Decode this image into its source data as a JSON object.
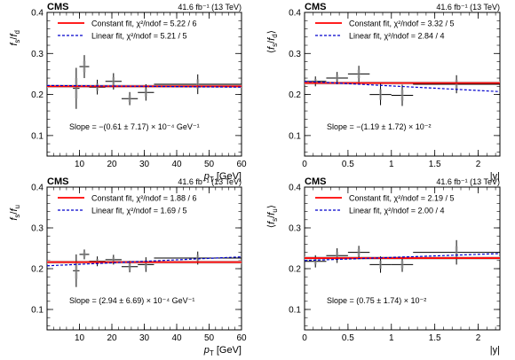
{
  "figure": {
    "panel_labels_experiment": "CMS",
    "lumi_label": "41.6 fb⁻¹ (13 TeV)"
  },
  "chart_data": [
    {
      "type": "scatter",
      "ylabel": "f_s / f_d",
      "xlabel": "p_T [GeV]",
      "xaxis_kind": "pt",
      "xlim": [
        0,
        60
      ],
      "ylim": [
        0.05,
        0.4
      ],
      "xticks": [
        10,
        20,
        30,
        40,
        50,
        60
      ],
      "yticks": [
        0.1,
        0.2,
        0.3,
        0.4
      ],
      "legend": [
        {
          "label": "Constant fit, χ²/ndof = 5.22 / 6",
          "style": "solid",
          "color": "#ff0000"
        },
        {
          "label": "Linear fit, χ²/ndof = 5.21 / 5",
          "style": "dashed",
          "color": "#0000cc"
        }
      ],
      "slope_text": "Slope = −(0.61 ± 7.17) × 10⁻⁴ GeV⁻¹",
      "points": [
        {
          "x": 9,
          "y": 0.215,
          "xerr": 1,
          "yerr": 0.05
        },
        {
          "x": 11.5,
          "y": 0.268,
          "xerr": 1.5,
          "yerr": 0.028
        },
        {
          "x": 15.5,
          "y": 0.218,
          "xerr": 2.5,
          "yerr": 0.018
        },
        {
          "x": 20.5,
          "y": 0.232,
          "xerr": 2.5,
          "yerr": 0.02
        },
        {
          "x": 25.5,
          "y": 0.19,
          "xerr": 2.5,
          "yerr": 0.016
        },
        {
          "x": 30.5,
          "y": 0.205,
          "xerr": 2.5,
          "yerr": 0.02
        },
        {
          "x": 46.5,
          "y": 0.225,
          "xerr": 13.5,
          "yerr": 0.024
        }
      ],
      "constant_fit": 0.22,
      "constant_band": 0.004,
      "linear_fit": [
        [
          0,
          0.222
        ],
        [
          60,
          0.218
        ]
      ]
    },
    {
      "type": "scatter",
      "ylabel": "⟨f_s / f_d⟩",
      "xlabel": "|y|",
      "xaxis_kind": "y",
      "xlim": [
        0,
        2.25
      ],
      "ylim": [
        0.05,
        0.4
      ],
      "xticks": [
        0,
        0.5,
        1,
        1.5,
        2
      ],
      "xtick_labels": [
        "0",
        "0.5",
        "1",
        "1.5",
        "2"
      ],
      "yticks": [
        0.1,
        0.2,
        0.3,
        0.4
      ],
      "legend": [
        {
          "label": "Constant fit, χ²/ndof = 3.32 / 5",
          "style": "solid",
          "color": "#ff0000"
        },
        {
          "label": "Linear fit, χ²/ndof = 2.84 / 4",
          "style": "dashed",
          "color": "#0000cc"
        }
      ],
      "slope_text": "Slope = −(1.19 ± 1.72) × 10⁻²",
      "points": [
        {
          "x": 0.125,
          "y": 0.232,
          "xerr": 0.125,
          "yerr": 0.012
        },
        {
          "x": 0.375,
          "y": 0.24,
          "xerr": 0.125,
          "yerr": 0.015
        },
        {
          "x": 0.625,
          "y": 0.25,
          "xerr": 0.125,
          "yerr": 0.02
        },
        {
          "x": 0.875,
          "y": 0.2,
          "xerr": 0.125,
          "yerr": 0.026
        },
        {
          "x": 1.125,
          "y": 0.198,
          "xerr": 0.125,
          "yerr": 0.026
        },
        {
          "x": 1.75,
          "y": 0.225,
          "xerr": 0.5,
          "yerr": 0.022
        }
      ],
      "constant_fit": 0.228,
      "constant_band": 0.004,
      "linear_fit": [
        [
          0,
          0.232
        ],
        [
          2.25,
          0.207
        ]
      ]
    },
    {
      "type": "scatter",
      "ylabel": "f_s / f_u",
      "xlabel": "p_T [GeV]",
      "xaxis_kind": "pt",
      "xlim": [
        0,
        60
      ],
      "ylim": [
        0.05,
        0.4
      ],
      "xticks": [
        10,
        20,
        30,
        40,
        50,
        60
      ],
      "yticks": [
        0.1,
        0.2,
        0.3,
        0.4
      ],
      "legend": [
        {
          "label": "Constant fit, χ²/ndof = 1.88 / 6",
          "style": "solid",
          "color": "#ff0000"
        },
        {
          "label": "Linear fit, χ²/ndof = 1.69 / 5",
          "style": "dashed",
          "color": "#0000cc"
        }
      ],
      "slope_text": "Slope = (2.94 ± 6.69) × 10⁻⁴ GeV⁻¹",
      "points": [
        {
          "x": 9,
          "y": 0.195,
          "xerr": 1,
          "yerr": 0.04
        },
        {
          "x": 11.5,
          "y": 0.235,
          "xerr": 1.5,
          "yerr": 0.012
        },
        {
          "x": 15.5,
          "y": 0.218,
          "xerr": 2.5,
          "yerr": 0.012
        },
        {
          "x": 20.5,
          "y": 0.222,
          "xerr": 2.5,
          "yerr": 0.012
        },
        {
          "x": 25.5,
          "y": 0.205,
          "xerr": 2.5,
          "yerr": 0.014
        },
        {
          "x": 30.5,
          "y": 0.21,
          "xerr": 2.5,
          "yerr": 0.018
        },
        {
          "x": 46.5,
          "y": 0.226,
          "xerr": 13.5,
          "yerr": 0.016
        }
      ],
      "constant_fit": 0.216,
      "constant_band": 0.004,
      "linear_fit": [
        [
          0,
          0.207
        ],
        [
          60,
          0.229
        ]
      ]
    },
    {
      "type": "scatter",
      "ylabel": "⟨f_s / f_u⟩",
      "xlabel": "|y|",
      "xaxis_kind": "y",
      "xlim": [
        0,
        2.25
      ],
      "ylim": [
        0.05,
        0.4
      ],
      "xticks": [
        0,
        0.5,
        1,
        1.5,
        2
      ],
      "xtick_labels": [
        "0",
        "0.5",
        "1",
        "1.5",
        "2"
      ],
      "yticks": [
        0.1,
        0.2,
        0.3,
        0.4
      ],
      "legend": [
        {
          "label": "Constant fit, χ²/ndof = 2.19 / 5",
          "style": "solid",
          "color": "#ff0000"
        },
        {
          "label": "Linear fit, χ²/ndof = 2.00 / 4",
          "style": "dashed",
          "color": "#0000cc"
        }
      ],
      "slope_text": "Slope = (0.75 ± 1.74) × 10⁻²",
      "points": [
        {
          "x": 0.125,
          "y": 0.218,
          "xerr": 0.125,
          "yerr": 0.015
        },
        {
          "x": 0.375,
          "y": 0.232,
          "xerr": 0.125,
          "yerr": 0.018
        },
        {
          "x": 0.625,
          "y": 0.24,
          "xerr": 0.125,
          "yerr": 0.016
        },
        {
          "x": 0.875,
          "y": 0.21,
          "xerr": 0.125,
          "yerr": 0.02
        },
        {
          "x": 1.125,
          "y": 0.21,
          "xerr": 0.125,
          "yerr": 0.018
        },
        {
          "x": 1.75,
          "y": 0.24,
          "xerr": 0.5,
          "yerr": 0.03
        }
      ],
      "constant_fit": 0.226,
      "constant_band": 0.004,
      "linear_fit": [
        [
          0,
          0.22
        ],
        [
          2.25,
          0.237
        ]
      ]
    }
  ]
}
